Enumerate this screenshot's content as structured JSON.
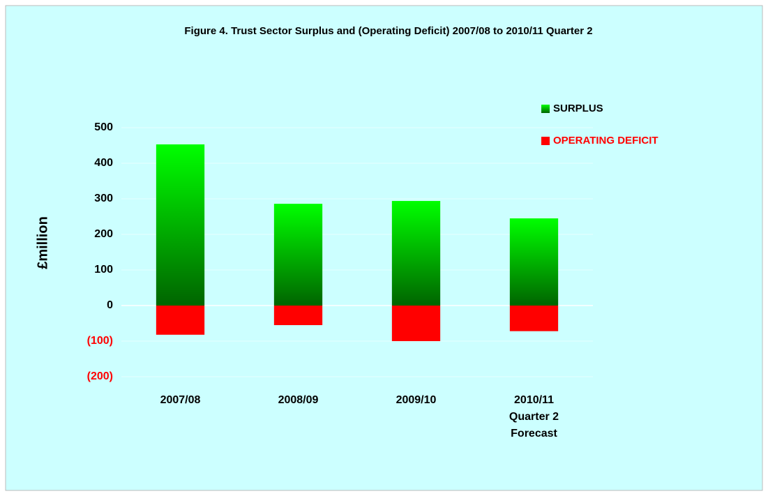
{
  "chart_data": {
    "type": "bar",
    "title": "Figure 4. Trust Sector Surplus and (Operating Deficit) 2007/08 to 2010/11 Quarter  2",
    "y_label": "£million",
    "categories": [
      "2007/08",
      "2008/09",
      "2009/10",
      "2010/11\nQuarter 2\nForecast"
    ],
    "series": [
      {
        "name": "SURPLUS",
        "color": "#00ff00",
        "values": [
          453,
          286,
          294,
          245
        ]
      },
      {
        "name": "OPERATING DEFICIT",
        "color": "#ff0000",
        "values": [
          -82,
          -55,
          -100,
          -72
        ]
      }
    ],
    "ylim": [
      -200,
      500
    ],
    "yticks": [
      {
        "value": -200,
        "label": "(200)"
      },
      {
        "value": -100,
        "label": "(100)"
      },
      0,
      100,
      200,
      300,
      400,
      500
    ],
    "grid": true,
    "legend": "top-right"
  }
}
